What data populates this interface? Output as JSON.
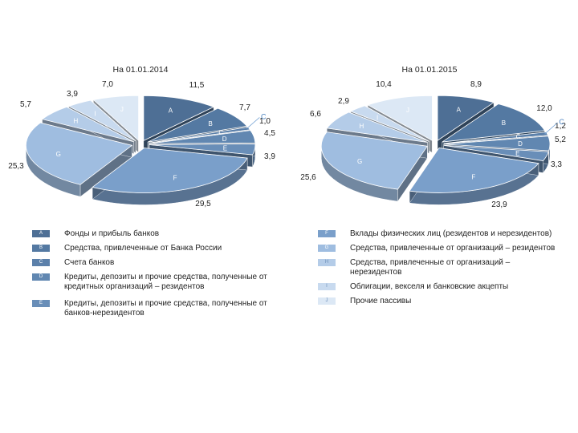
{
  "chart_data": [
    {
      "type": "pie",
      "title": "На 01.01.2014",
      "categories": [
        "A",
        "B",
        "C",
        "D",
        "E",
        "F",
        "G",
        "H",
        "I",
        "J"
      ],
      "values": [
        11.5,
        7.7,
        1.0,
        4.5,
        3.9,
        29.5,
        25.3,
        5.7,
        3.9,
        7.0
      ],
      "value_labels": [
        "11,5",
        "7,7",
        "1,0",
        "4,5",
        "3,9",
        "29,5",
        "25,3",
        "5,7",
        "3,9",
        "7,0"
      ]
    },
    {
      "type": "pie",
      "title": "На 01.01.2015",
      "categories": [
        "A",
        "B",
        "C",
        "D",
        "E",
        "F",
        "G",
        "H",
        "I",
        "J"
      ],
      "values": [
        8.9,
        12.0,
        1.2,
        5.2,
        3.3,
        23.9,
        25.6,
        6.6,
        2.9,
        10.4
      ],
      "value_labels": [
        "8,9",
        "12,0",
        "1,2",
        "5,2",
        "3,3",
        "23,9",
        "25,6",
        "6,6",
        "2,9",
        "10,4"
      ]
    }
  ],
  "colors": {
    "A": "#4e6f95",
    "B": "#5479a2",
    "C": "#5b80aa",
    "D": "#6187b1",
    "E": "#698eb8",
    "F": "#7a9fca",
    "G": "#9fbde0",
    "H": "#b4cce8",
    "I": "#c8daef",
    "J": "#dce8f5"
  },
  "legend": {
    "left": [
      {
        "code": "A",
        "label": "Фонды и прибыль банков"
      },
      {
        "code": "B",
        "label": "Средства, привлеченные от Банка России"
      },
      {
        "code": "C",
        "label": "Счета банков"
      },
      {
        "code": "D",
        "label": "Кредиты, депозиты и прочие средства, полученные от кредитных организаций – резидентов"
      },
      {
        "code": "E",
        "label": "Кредиты, депозиты и прочие средства, полученные от банков-нерезидентов"
      }
    ],
    "right": [
      {
        "code": "F",
        "label": "Вклады физических лиц (резидентов и нерезидентов)"
      },
      {
        "code": "G",
        "label": "Средства, привлеченные от организаций – резидентов"
      },
      {
        "code": "H",
        "label": "Средства, привлеченные от организаций – нерезидентов"
      },
      {
        "code": "I",
        "label": "Облигации, векселя и банковские акцепты"
      },
      {
        "code": "J",
        "label": "Прочие пассивы"
      }
    ]
  }
}
